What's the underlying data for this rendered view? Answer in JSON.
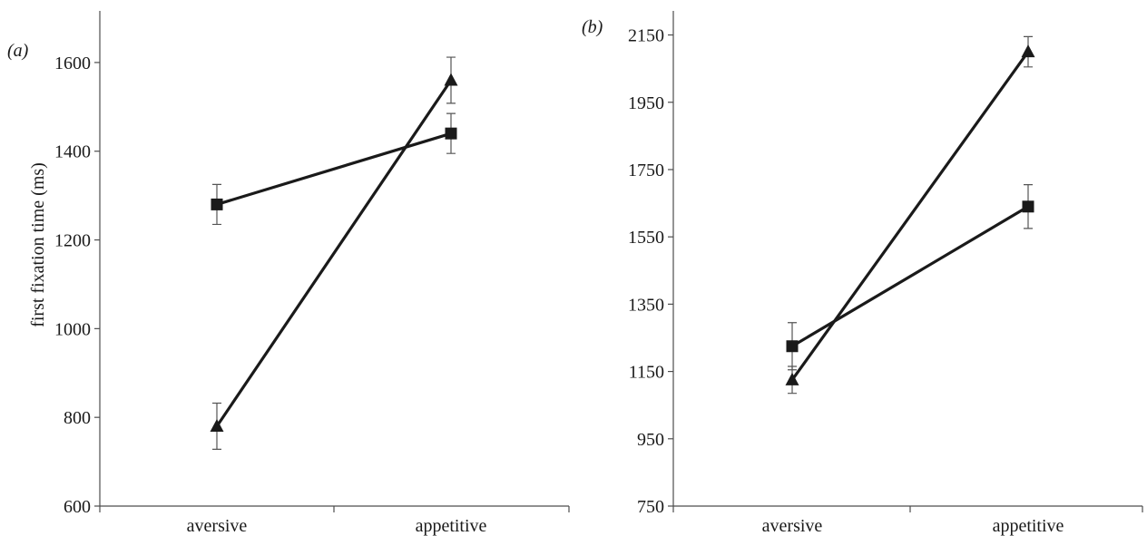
{
  "chart_data": [
    {
      "type": "line",
      "panel_label": "(a)",
      "categories": [
        "aversive",
        "appetitive"
      ],
      "ylabel": "first fixation time (ms)",
      "ylim": [
        600,
        1700
      ],
      "yticks": [
        "600",
        "800",
        "1000",
        "1200",
        "1400",
        "1600"
      ],
      "grid": false,
      "legend": "none",
      "series": [
        {
          "marker": "square",
          "values": [
            1280,
            1440
          ],
          "errors": [
            45,
            45
          ]
        },
        {
          "marker": "triangle",
          "values": [
            780,
            1560
          ],
          "errors": [
            52,
            52
          ]
        }
      ]
    },
    {
      "type": "line",
      "panel_label": "(b)",
      "categories": [
        "aversive",
        "appetitive"
      ],
      "ylabel": "",
      "ylim": [
        750,
        2200
      ],
      "yticks": [
        "750",
        "950",
        "1150",
        "1350",
        "1550",
        "1750",
        "1950",
        "2150"
      ],
      "grid": false,
      "legend": "none",
      "series": [
        {
          "marker": "square",
          "values": [
            1225,
            1640
          ],
          "errors": [
            70,
            65
          ]
        },
        {
          "marker": "triangle",
          "values": [
            1125,
            2100
          ],
          "errors": [
            40,
            45
          ]
        }
      ]
    }
  ]
}
